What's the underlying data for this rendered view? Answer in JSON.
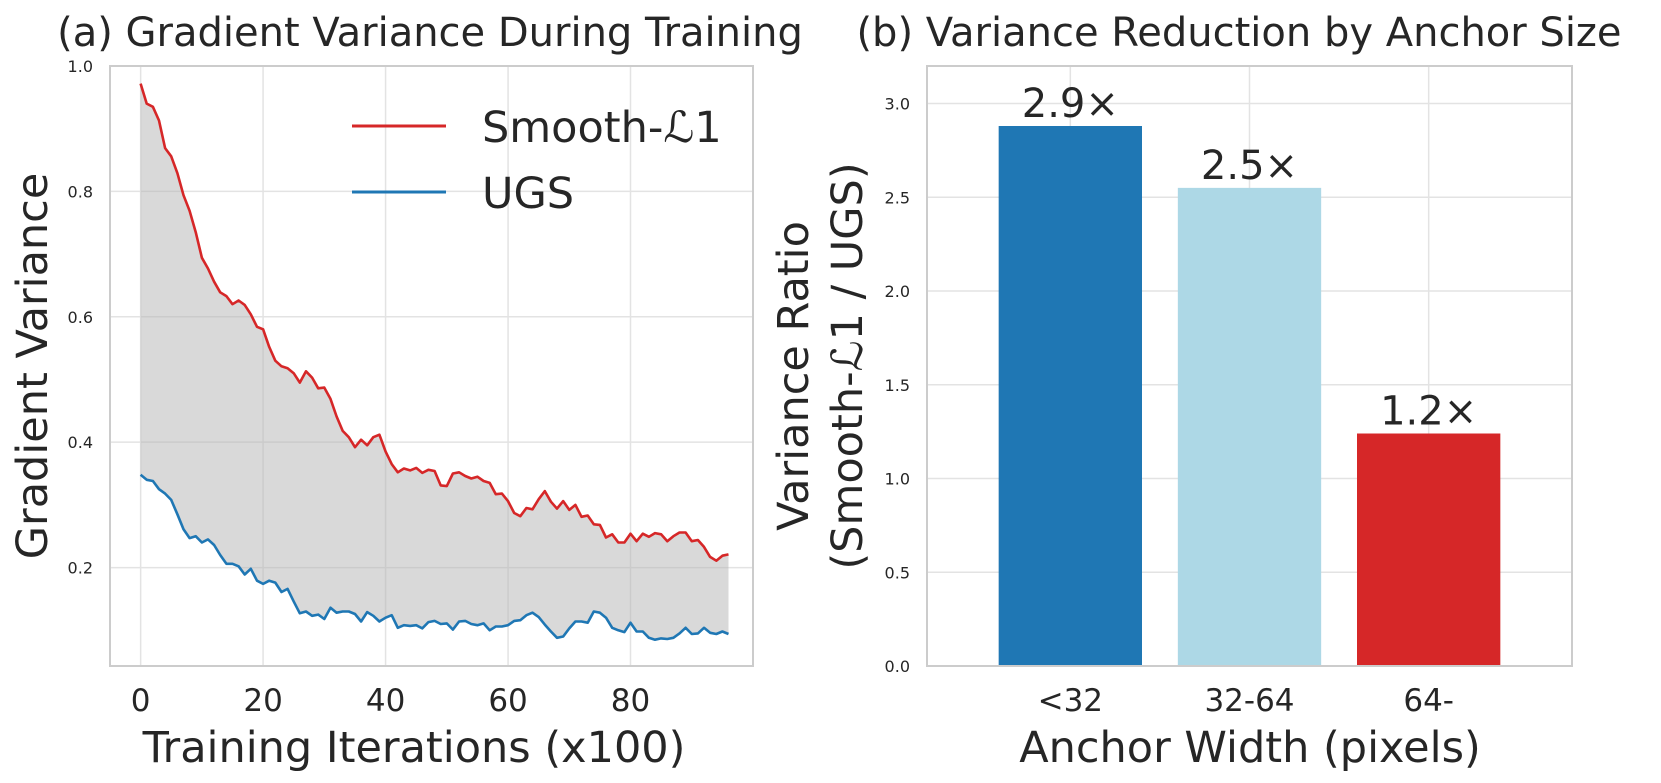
{
  "chart_data": [
    {
      "type": "line",
      "title": "(a) Gradient Variance During Training",
      "xlabel": "Training Iterations (x100)",
      "ylabel": "Gradient Variance",
      "xlim": [
        -5,
        100
      ],
      "ylim": [
        0.043,
        1.0
      ],
      "xticks": [
        "0",
        "20",
        "40",
        "60",
        "80"
      ],
      "yticks": [
        "0.2",
        "0.4",
        "0.6",
        "0.8",
        "1.0"
      ],
      "grid": true,
      "legend_position": "top-right",
      "fill_between": true,
      "series": [
        {
          "name": "Smooth-ℒ1",
          "color": "#d62728",
          "values": [
            0.972,
            0.94,
            0.935,
            0.913,
            0.869,
            0.856,
            0.829,
            0.794,
            0.769,
            0.735,
            0.694,
            0.677,
            0.656,
            0.639,
            0.633,
            0.62,
            0.626,
            0.619,
            0.604,
            0.584,
            0.58,
            0.552,
            0.53,
            0.521,
            0.518,
            0.51,
            0.495,
            0.513,
            0.503,
            0.486,
            0.487,
            0.469,
            0.441,
            0.418,
            0.408,
            0.392,
            0.404,
            0.395,
            0.408,
            0.412,
            0.385,
            0.365,
            0.352,
            0.358,
            0.355,
            0.359,
            0.351,
            0.356,
            0.354,
            0.331,
            0.33,
            0.35,
            0.352,
            0.346,
            0.342,
            0.345,
            0.338,
            0.335,
            0.317,
            0.318,
            0.306,
            0.287,
            0.282,
            0.295,
            0.293,
            0.309,
            0.322,
            0.305,
            0.294,
            0.306,
            0.292,
            0.3,
            0.281,
            0.283,
            0.269,
            0.268,
            0.248,
            0.253,
            0.24,
            0.24,
            0.254,
            0.242,
            0.254,
            0.249,
            0.255,
            0.253,
            0.242,
            0.25,
            0.256,
            0.256,
            0.242,
            0.244,
            0.233,
            0.217,
            0.211,
            0.219,
            0.221
          ]
        },
        {
          "name": "UGS",
          "color": "#1f77b4",
          "values": [
            0.348,
            0.34,
            0.338,
            0.325,
            0.318,
            0.308,
            0.285,
            0.261,
            0.247,
            0.25,
            0.24,
            0.245,
            0.236,
            0.22,
            0.206,
            0.206,
            0.202,
            0.189,
            0.198,
            0.179,
            0.174,
            0.179,
            0.176,
            0.161,
            0.166,
            0.146,
            0.127,
            0.13,
            0.123,
            0.125,
            0.118,
            0.136,
            0.128,
            0.13,
            0.13,
            0.126,
            0.114,
            0.129,
            0.123,
            0.114,
            0.12,
            0.124,
            0.104,
            0.108,
            0.107,
            0.108,
            0.103,
            0.113,
            0.115,
            0.11,
            0.111,
            0.101,
            0.114,
            0.115,
            0.11,
            0.108,
            0.111,
            0.1,
            0.106,
            0.106,
            0.108,
            0.115,
            0.116,
            0.124,
            0.128,
            0.121,
            0.109,
            0.098,
            0.088,
            0.09,
            0.103,
            0.114,
            0.114,
            0.112,
            0.13,
            0.128,
            0.12,
            0.104,
            0.1,
            0.097,
            0.112,
            0.098,
            0.098,
            0.088,
            0.085,
            0.087,
            0.086,
            0.088,
            0.095,
            0.104,
            0.094,
            0.095,
            0.104,
            0.096,
            0.094,
            0.098,
            0.094
          ]
        }
      ]
    },
    {
      "type": "bar",
      "title": "(b) Variance Reduction by Anchor Size",
      "xlabel": "Anchor Width (pixels)",
      "ylabel_line1": "Variance Ratio",
      "ylabel_line2": "(Smooth-ℒ1 / UGS)",
      "categories": [
        "<32",
        "32-64",
        "64-"
      ],
      "values": [
        2.88,
        2.55,
        1.24
      ],
      "value_labels": [
        "2.9×",
        "2.5×",
        "1.2×"
      ],
      "colors": [
        "#1f77b4",
        "#add8e6",
        "#d62728"
      ],
      "ylim": [
        0,
        3.2
      ],
      "yticks": [
        "0.0",
        "0.5",
        "1.0",
        "1.5",
        "2.0",
        "2.5",
        "3.0"
      ],
      "grid": true
    }
  ]
}
